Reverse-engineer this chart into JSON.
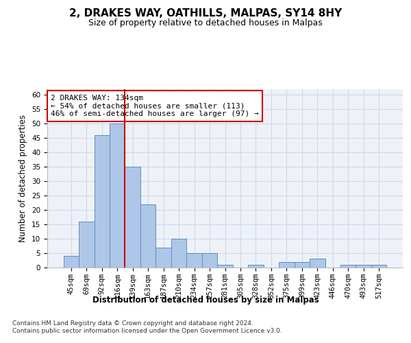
{
  "title": "2, DRAKES WAY, OATHILLS, MALPAS, SY14 8HY",
  "subtitle": "Size of property relative to detached houses in Malpas",
  "xlabel": "Distribution of detached houses by size in Malpas",
  "ylabel": "Number of detached properties",
  "categories": [
    "45sqm",
    "69sqm",
    "92sqm",
    "116sqm",
    "139sqm",
    "163sqm",
    "187sqm",
    "210sqm",
    "234sqm",
    "257sqm",
    "281sqm",
    "305sqm",
    "328sqm",
    "352sqm",
    "375sqm",
    "399sqm",
    "423sqm",
    "446sqm",
    "470sqm",
    "493sqm",
    "517sqm"
  ],
  "values": [
    4,
    16,
    46,
    50,
    35,
    22,
    7,
    10,
    5,
    5,
    1,
    0,
    1,
    0,
    2,
    2,
    3,
    0,
    1,
    1,
    1
  ],
  "bar_color": "#aec6e8",
  "bar_edge_color": "#5a8fc0",
  "vline_x": 3.5,
  "vline_color": "#cc0000",
  "annotation_text": "2 DRAKES WAY: 134sqm\n← 54% of detached houses are smaller (113)\n46% of semi-detached houses are larger (97) →",
  "annotation_box_color": "#ffffff",
  "annotation_box_edge": "#cc0000",
  "ylim": [
    0,
    62
  ],
  "yticks": [
    0,
    5,
    10,
    15,
    20,
    25,
    30,
    35,
    40,
    45,
    50,
    55,
    60
  ],
  "grid_color": "#d0d8e8",
  "background_color": "#eef2f8",
  "footer_text": "Contains HM Land Registry data © Crown copyright and database right 2024.\nContains public sector information licensed under the Open Government Licence v3.0.",
  "title_fontsize": 11,
  "subtitle_fontsize": 9,
  "axis_label_fontsize": 8.5,
  "tick_fontsize": 7.5,
  "annotation_fontsize": 8,
  "footer_fontsize": 6.5
}
